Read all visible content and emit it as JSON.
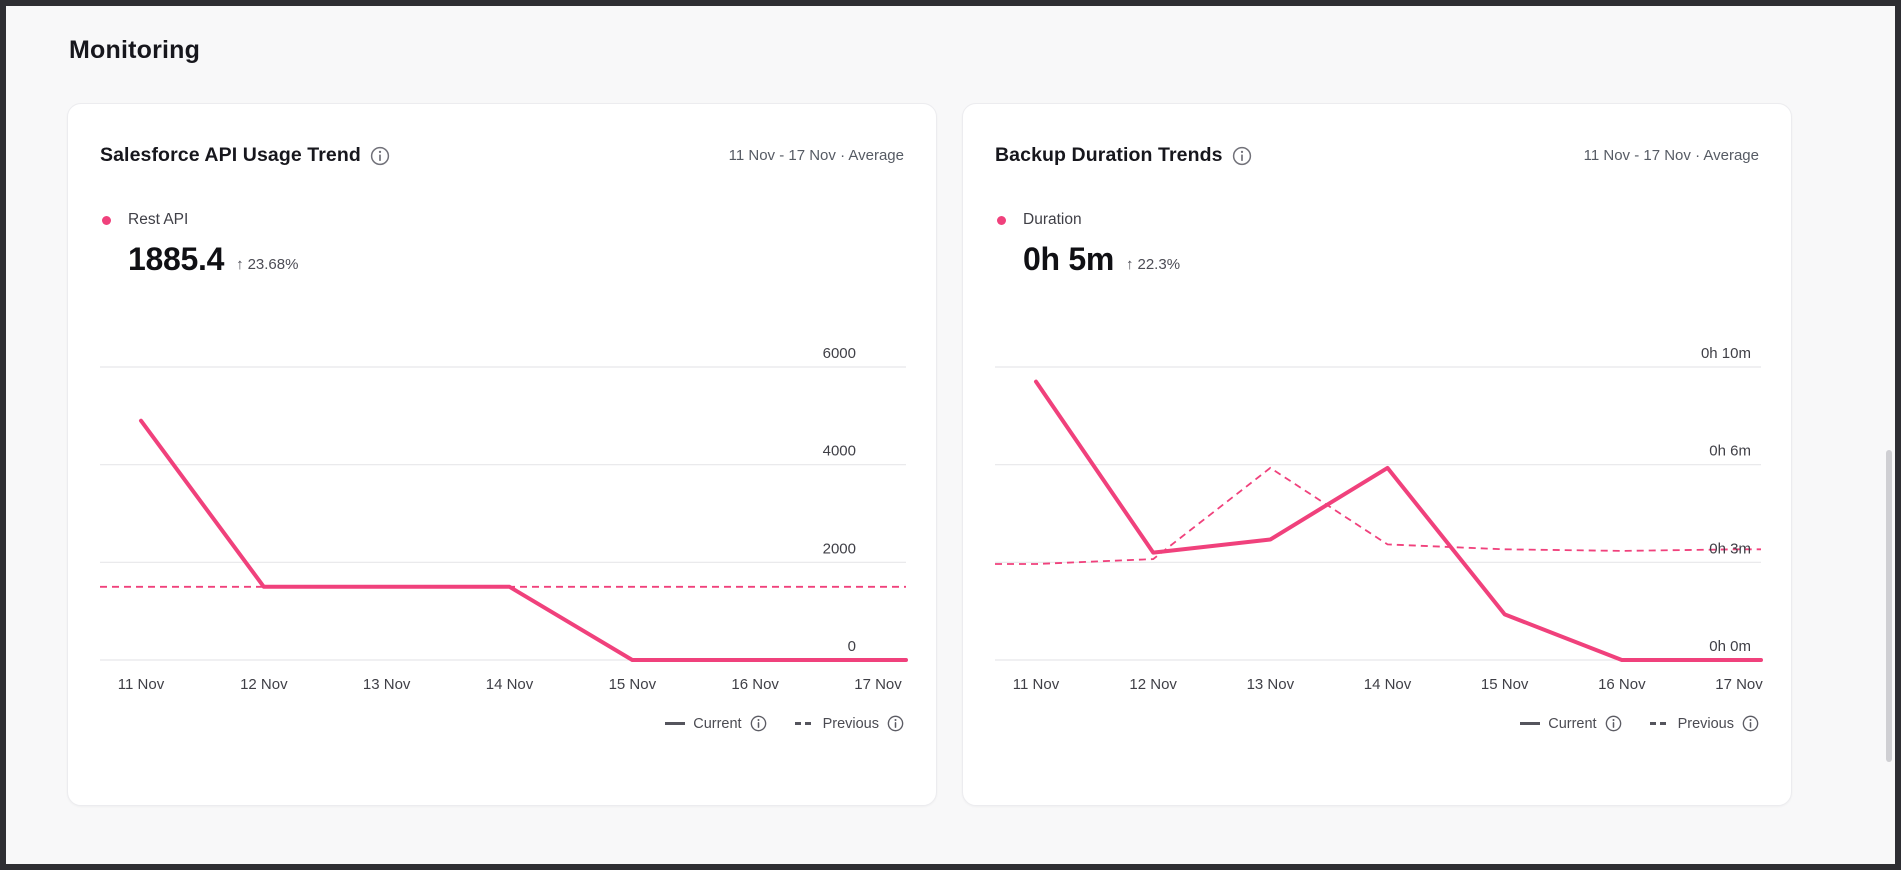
{
  "page": {
    "title": "Monitoring"
  },
  "accent_color": "#f0417c",
  "grid_color": "#e7e7ea",
  "cards": [
    {
      "title": "Salesforce API Usage Trend",
      "date_range": "11 Nov - 17 Nov · Average",
      "series_label": "Rest API",
      "average_value": "1885.4",
      "delta_arrow": "↑",
      "delta": "23.68%",
      "legend": {
        "current_label": "Current",
        "previous_label": "Previous"
      },
      "chart_data": {
        "type": "line",
        "title": "Salesforce API Usage Trend",
        "x": [
          "11 Nov",
          "12 Nov",
          "13 Nov",
          "14 Nov",
          "15 Nov",
          "16 Nov",
          "17 Nov"
        ],
        "y_tick_labels": [
          "6000",
          "4000",
          "2000",
          "0"
        ],
        "y_tick_values": [
          6000,
          4000,
          2000,
          0
        ],
        "ylim": [
          0,
          6000
        ],
        "grid": true,
        "legend_position": "bottom-right",
        "series": [
          {
            "name": "Current",
            "line_style": "solid",
            "values": [
              4900,
              1500,
              1500,
              1500,
              0,
              0,
              0
            ]
          },
          {
            "name": "Previous",
            "line_style": "dashed",
            "values": [
              1500,
              1500,
              1500,
              1500,
              1500,
              1500,
              1500
            ]
          }
        ]
      }
    },
    {
      "title": "Backup Duration Trends",
      "date_range": "11 Nov - 17 Nov · Average",
      "series_label": "Duration",
      "average_value": "0h 5m",
      "delta_arrow": "↑",
      "delta": "22.3%",
      "legend": {
        "current_label": "Current",
        "previous_label": "Previous"
      },
      "chart_data": {
        "type": "line",
        "title": "Backup Duration Trends",
        "unit": "minutes",
        "x": [
          "11 Nov",
          "12 Nov",
          "13 Nov",
          "14 Nov",
          "15 Nov",
          "16 Nov",
          "17 Nov"
        ],
        "y_tick_labels": [
          "0h 10m",
          "0h 6m",
          "0h 3m",
          "0h 0m"
        ],
        "y_tick_values": [
          10,
          6,
          3,
          0
        ],
        "ylim": [
          0,
          10
        ],
        "grid": true,
        "legend_position": "bottom-right",
        "series": [
          {
            "name": "Current",
            "line_style": "solid",
            "values": [
              9.4,
              3.3,
              3.7,
              5.9,
              1.4,
              0,
              0
            ]
          },
          {
            "name": "Previous",
            "line_style": "dashed",
            "values": [
              2.95,
              3.1,
              5.9,
              3.55,
              3.4,
              3.35,
              3.4
            ]
          }
        ]
      }
    }
  ]
}
